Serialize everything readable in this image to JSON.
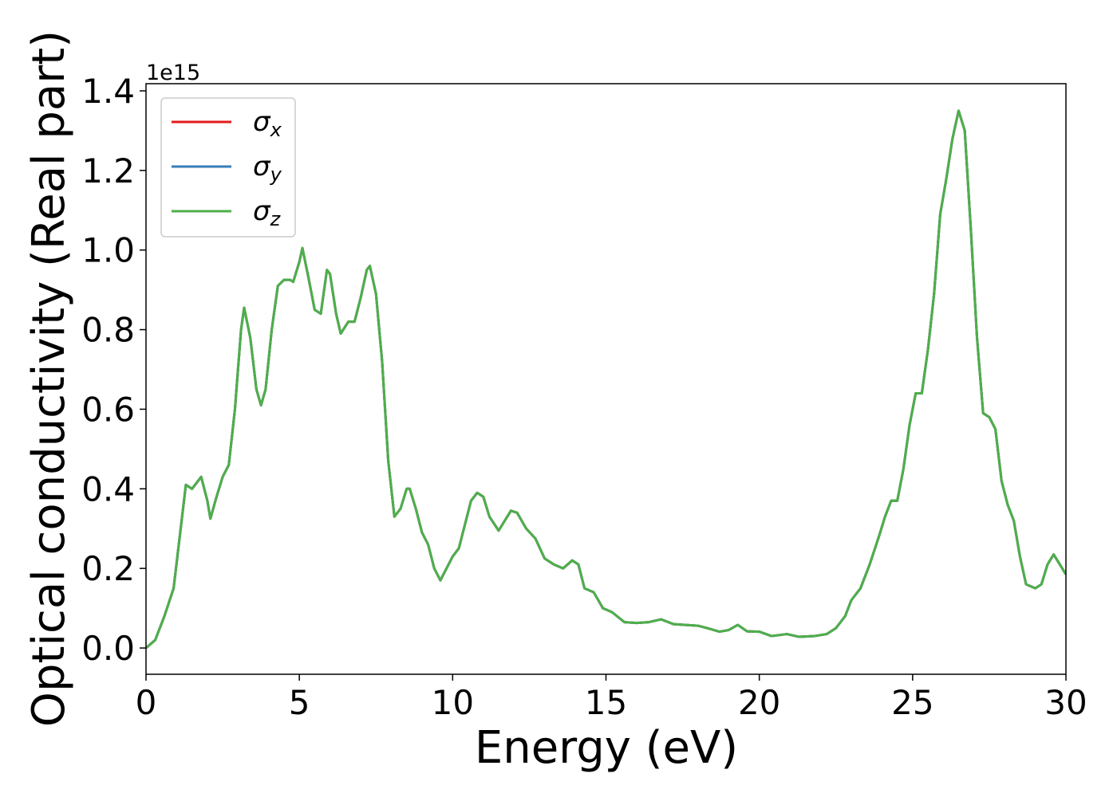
{
  "chart_data": {
    "type": "line",
    "x_label": "Energy (eV)",
    "y_label": "Optical conductivity (Real part)",
    "y_offset_label": "1e15",
    "x": [
      0,
      0.3,
      0.6,
      0.9,
      1.1,
      1.3,
      1.5,
      1.8,
      2.0,
      2.1,
      2.3,
      2.5,
      2.7,
      2.9,
      3.1,
      3.2,
      3.4,
      3.6,
      3.75,
      3.9,
      4.1,
      4.3,
      4.5,
      4.7,
      4.8,
      5.0,
      5.1,
      5.3,
      5.5,
      5.7,
      5.9,
      6.0,
      6.2,
      6.35,
      6.6,
      6.8,
      7.0,
      7.2,
      7.3,
      7.5,
      7.7,
      7.9,
      8.1,
      8.3,
      8.5,
      8.6,
      8.8,
      9.0,
      9.2,
      9.4,
      9.6,
      9.8,
      10.0,
      10.2,
      10.4,
      10.6,
      10.8,
      11.0,
      11.2,
      11.5,
      11.7,
      11.9,
      12.1,
      12.4,
      12.7,
      13.0,
      13.3,
      13.6,
      13.9,
      14.1,
      14.3,
      14.6,
      14.9,
      15.2,
      15.6,
      16.0,
      16.4,
      16.8,
      17.2,
      17.6,
      18.0,
      18.3,
      18.7,
      19.0,
      19.3,
      19.6,
      20.0,
      20.4,
      20.9,
      21.3,
      21.8,
      22.2,
      22.5,
      22.8,
      23.0,
      23.3,
      23.6,
      23.9,
      24.1,
      24.3,
      24.5,
      24.7,
      24.9,
      25.1,
      25.3,
      25.5,
      25.7,
      25.9,
      26.1,
      26.3,
      26.5,
      26.7,
      26.9,
      27.1,
      27.3,
      27.5,
      27.7,
      27.9,
      28.1,
      28.3,
      28.5,
      28.7,
      29.0,
      29.2,
      29.4,
      29.6,
      29.8,
      30.0
    ],
    "series": [
      {
        "name": "σx",
        "color": "#e41a1c",
        "values": [
          0,
          0.02,
          0.08,
          0.15,
          0.28,
          0.41,
          0.4,
          0.43,
          0.37,
          0.325,
          0.38,
          0.43,
          0.46,
          0.6,
          0.8,
          0.855,
          0.78,
          0.65,
          0.61,
          0.65,
          0.8,
          0.91,
          0.925,
          0.925,
          0.92,
          0.97,
          1.005,
          0.93,
          0.85,
          0.84,
          0.95,
          0.94,
          0.84,
          0.79,
          0.82,
          0.82,
          0.88,
          0.95,
          0.96,
          0.89,
          0.72,
          0.47,
          0.33,
          0.35,
          0.4,
          0.4,
          0.35,
          0.29,
          0.26,
          0.2,
          0.17,
          0.2,
          0.23,
          0.25,
          0.31,
          0.37,
          0.39,
          0.38,
          0.33,
          0.295,
          0.32,
          0.345,
          0.34,
          0.3,
          0.275,
          0.225,
          0.21,
          0.2,
          0.22,
          0.21,
          0.15,
          0.14,
          0.1,
          0.09,
          0.065,
          0.063,
          0.065,
          0.072,
          0.06,
          0.058,
          0.056,
          0.05,
          0.041,
          0.045,
          0.058,
          0.042,
          0.041,
          0.03,
          0.035,
          0.028,
          0.03,
          0.035,
          0.05,
          0.08,
          0.12,
          0.15,
          0.21,
          0.28,
          0.33,
          0.37,
          0.37,
          0.45,
          0.56,
          0.64,
          0.64,
          0.75,
          0.89,
          1.09,
          1.18,
          1.28,
          1.35,
          1.3,
          1.05,
          0.78,
          0.59,
          0.58,
          0.55,
          0.42,
          0.36,
          0.32,
          0.23,
          0.16,
          0.15,
          0.16,
          0.21,
          0.235,
          0.21,
          0.185
        ]
      },
      {
        "name": "σy",
        "color": "#377eb8",
        "values": [
          0,
          0.02,
          0.08,
          0.15,
          0.28,
          0.41,
          0.4,
          0.43,
          0.37,
          0.325,
          0.38,
          0.43,
          0.46,
          0.6,
          0.8,
          0.855,
          0.78,
          0.65,
          0.61,
          0.65,
          0.8,
          0.91,
          0.925,
          0.925,
          0.92,
          0.97,
          1.005,
          0.93,
          0.85,
          0.84,
          0.95,
          0.94,
          0.84,
          0.79,
          0.82,
          0.82,
          0.88,
          0.95,
          0.96,
          0.89,
          0.72,
          0.47,
          0.33,
          0.35,
          0.4,
          0.4,
          0.35,
          0.29,
          0.26,
          0.2,
          0.17,
          0.2,
          0.23,
          0.25,
          0.31,
          0.37,
          0.39,
          0.38,
          0.33,
          0.295,
          0.32,
          0.345,
          0.34,
          0.3,
          0.275,
          0.225,
          0.21,
          0.2,
          0.22,
          0.21,
          0.15,
          0.14,
          0.1,
          0.09,
          0.065,
          0.063,
          0.065,
          0.072,
          0.06,
          0.058,
          0.056,
          0.05,
          0.041,
          0.045,
          0.058,
          0.042,
          0.041,
          0.03,
          0.035,
          0.028,
          0.03,
          0.035,
          0.05,
          0.08,
          0.12,
          0.15,
          0.21,
          0.28,
          0.33,
          0.37,
          0.37,
          0.45,
          0.56,
          0.64,
          0.64,
          0.75,
          0.89,
          1.09,
          1.18,
          1.28,
          1.35,
          1.3,
          1.05,
          0.78,
          0.59,
          0.58,
          0.55,
          0.42,
          0.36,
          0.32,
          0.23,
          0.16,
          0.15,
          0.16,
          0.21,
          0.235,
          0.21,
          0.185
        ]
      },
      {
        "name": "σz",
        "color": "#4daf4a",
        "values": [
          0,
          0.02,
          0.08,
          0.15,
          0.28,
          0.41,
          0.4,
          0.43,
          0.37,
          0.325,
          0.38,
          0.43,
          0.46,
          0.6,
          0.8,
          0.855,
          0.78,
          0.65,
          0.61,
          0.65,
          0.8,
          0.91,
          0.925,
          0.925,
          0.92,
          0.97,
          1.005,
          0.93,
          0.85,
          0.84,
          0.95,
          0.94,
          0.84,
          0.79,
          0.82,
          0.82,
          0.88,
          0.95,
          0.96,
          0.89,
          0.72,
          0.47,
          0.33,
          0.35,
          0.4,
          0.4,
          0.35,
          0.29,
          0.26,
          0.2,
          0.17,
          0.2,
          0.23,
          0.25,
          0.31,
          0.37,
          0.39,
          0.38,
          0.33,
          0.295,
          0.32,
          0.345,
          0.34,
          0.3,
          0.275,
          0.225,
          0.21,
          0.2,
          0.22,
          0.21,
          0.15,
          0.14,
          0.1,
          0.09,
          0.065,
          0.063,
          0.065,
          0.072,
          0.06,
          0.058,
          0.056,
          0.05,
          0.041,
          0.045,
          0.058,
          0.042,
          0.041,
          0.03,
          0.035,
          0.028,
          0.03,
          0.035,
          0.05,
          0.08,
          0.12,
          0.15,
          0.21,
          0.28,
          0.33,
          0.37,
          0.37,
          0.45,
          0.56,
          0.64,
          0.64,
          0.75,
          0.89,
          1.09,
          1.18,
          1.28,
          1.35,
          1.3,
          1.05,
          0.78,
          0.59,
          0.58,
          0.55,
          0.42,
          0.36,
          0.32,
          0.23,
          0.16,
          0.15,
          0.16,
          0.21,
          0.235,
          0.21,
          0.185
        ]
      }
    ],
    "xlim": [
      0,
      30
    ],
    "xticks": [
      0,
      5,
      10,
      15,
      20,
      25,
      30
    ],
    "ylim": [
      -0.066,
      1.418
    ],
    "yticks": [
      {
        "value": 0,
        "label": "0.0"
      },
      0.2,
      0.4,
      0.6,
      0.8,
      {
        "value": 1,
        "label": "1.0"
      },
      1.2,
      1.4
    ],
    "grid": false,
    "legend": "upper left"
  }
}
